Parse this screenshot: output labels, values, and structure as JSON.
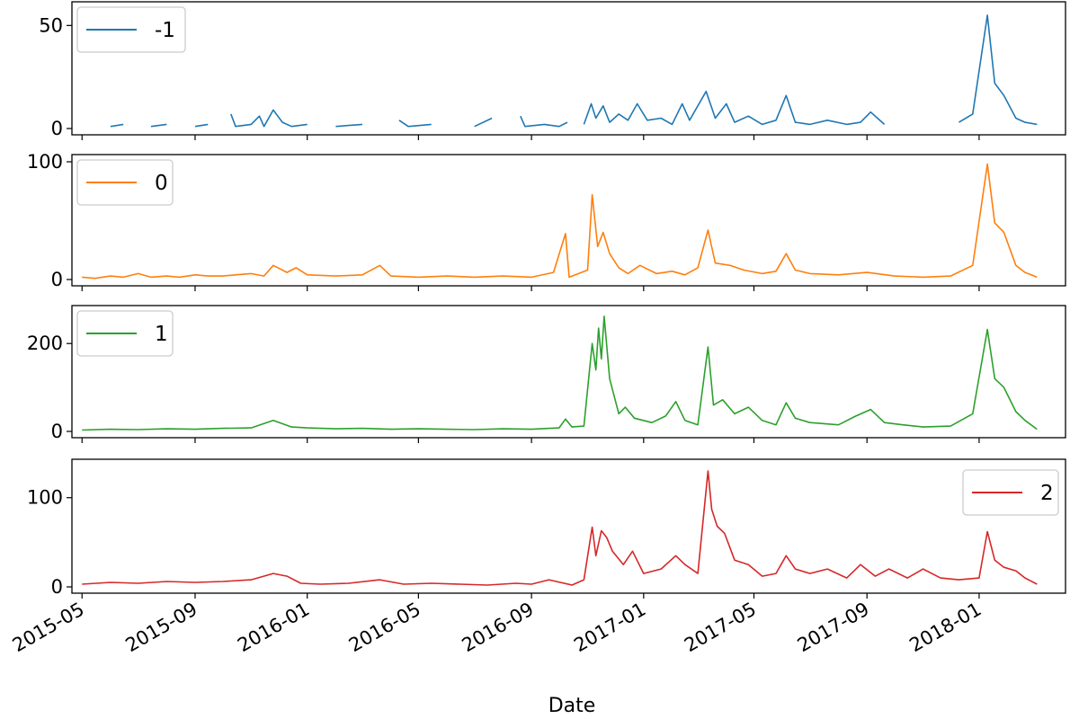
{
  "chart_data": {
    "type": "line",
    "subplots": true,
    "xlabel": "Date",
    "x_tick_labels": [
      "2015-05",
      "2015-09",
      "2016-01",
      "2016-05",
      "2016-09",
      "2017-01",
      "2017-05",
      "2017-09",
      "2018-01"
    ],
    "x_tick_dates": [
      "2015-05-01",
      "2015-09-01",
      "2016-01-01",
      "2016-05-01",
      "2016-09-01",
      "2017-01-01",
      "2017-05-01",
      "2017-09-01",
      "2018-01-01"
    ],
    "xlim": [
      "2015-04-20",
      "2018-04-05"
    ],
    "grid": false,
    "series": [
      {
        "name": "-1",
        "color": "#1f77b4",
        "ylim": [
          0,
          58
        ],
        "yticks": [
          0,
          50
        ],
        "legend_loc": "upper left",
        "points": [
          [
            "2015-05-01",
            null
          ],
          [
            "2015-05-10",
            1
          ],
          [
            "2015-05-20",
            null
          ],
          [
            "2015-06-01",
            1
          ],
          [
            "2015-06-15",
            2
          ],
          [
            "2015-07-01",
            null
          ],
          [
            "2015-07-15",
            1
          ],
          [
            "2015-08-01",
            2
          ],
          [
            "2015-08-20",
            null
          ],
          [
            "2015-09-01",
            1
          ],
          [
            "2015-09-15",
            2
          ],
          [
            "2015-10-01",
            null
          ],
          [
            "2015-10-10",
            7
          ],
          [
            "2015-10-15",
            1
          ],
          [
            "2015-11-01",
            2
          ],
          [
            "2015-11-10",
            6
          ],
          [
            "2015-11-15",
            1
          ],
          [
            "2015-11-25",
            9
          ],
          [
            "2015-12-05",
            3
          ],
          [
            "2015-12-15",
            1
          ],
          [
            "2016-01-01",
            2
          ],
          [
            "2016-01-20",
            null
          ],
          [
            "2016-02-01",
            1
          ],
          [
            "2016-03-01",
            2
          ],
          [
            "2016-04-01",
            null
          ],
          [
            "2016-04-10",
            4
          ],
          [
            "2016-04-20",
            1
          ],
          [
            "2016-05-15",
            2
          ],
          [
            "2016-06-01",
            null
          ],
          [
            "2016-07-01",
            1
          ],
          [
            "2016-07-20",
            5
          ],
          [
            "2016-08-01",
            null
          ],
          [
            "2016-08-20",
            6
          ],
          [
            "2016-08-25",
            1
          ],
          [
            "2016-09-15",
            2
          ],
          [
            "2016-10-01",
            1
          ],
          [
            "2016-10-10",
            3
          ],
          [
            "2016-10-15",
            null
          ],
          [
            "2016-10-28",
            2
          ],
          [
            "2016-11-05",
            12
          ],
          [
            "2016-11-10",
            5
          ],
          [
            "2016-11-18",
            11
          ],
          [
            "2016-11-25",
            3
          ],
          [
            "2016-12-05",
            7
          ],
          [
            "2016-12-15",
            4
          ],
          [
            "2016-12-25",
            12
          ],
          [
            "2017-01-05",
            4
          ],
          [
            "2017-01-20",
            5
          ],
          [
            "2017-02-01",
            2
          ],
          [
            "2017-02-12",
            12
          ],
          [
            "2017-02-20",
            4
          ],
          [
            "2017-03-10",
            18
          ],
          [
            "2017-03-20",
            5
          ],
          [
            "2017-04-01",
            12
          ],
          [
            "2017-04-10",
            3
          ],
          [
            "2017-04-25",
            6
          ],
          [
            "2017-05-10",
            2
          ],
          [
            "2017-05-25",
            4
          ],
          [
            "2017-06-05",
            16
          ],
          [
            "2017-06-15",
            3
          ],
          [
            "2017-07-01",
            2
          ],
          [
            "2017-07-20",
            4
          ],
          [
            "2017-08-10",
            2
          ],
          [
            "2017-08-25",
            3
          ],
          [
            "2017-09-05",
            8
          ],
          [
            "2017-09-20",
            2
          ],
          [
            "2017-10-01",
            null
          ],
          [
            "2017-10-10",
            1
          ],
          [
            "2017-10-25",
            null
          ],
          [
            "2017-11-01",
            1
          ],
          [
            "2017-11-20",
            null
          ],
          [
            "2017-12-01",
            null
          ],
          [
            "2017-12-10",
            3
          ],
          [
            "2017-12-25",
            7
          ],
          [
            "2018-01-10",
            55
          ],
          [
            "2018-01-18",
            22
          ],
          [
            "2018-01-28",
            16
          ],
          [
            "2018-02-10",
            5
          ],
          [
            "2018-02-20",
            3
          ],
          [
            "2018-03-05",
            2
          ]
        ]
      },
      {
        "name": "0",
        "color": "#ff7f0e",
        "ylim": [
          0,
          100
        ],
        "yticks": [
          0,
          100
        ],
        "legend_loc": "upper left",
        "points": [
          [
            "2015-05-01",
            2
          ],
          [
            "2015-05-15",
            1
          ],
          [
            "2015-06-01",
            3
          ],
          [
            "2015-06-15",
            2
          ],
          [
            "2015-07-01",
            5
          ],
          [
            "2015-07-15",
            2
          ],
          [
            "2015-08-01",
            3
          ],
          [
            "2015-08-15",
            2
          ],
          [
            "2015-09-01",
            4
          ],
          [
            "2015-09-15",
            3
          ],
          [
            "2015-10-01",
            3
          ],
          [
            "2015-10-15",
            4
          ],
          [
            "2015-11-01",
            5
          ],
          [
            "2015-11-15",
            3
          ],
          [
            "2015-11-25",
            12
          ],
          [
            "2015-12-10",
            6
          ],
          [
            "2015-12-20",
            10
          ],
          [
            "2016-01-01",
            4
          ],
          [
            "2016-02-01",
            3
          ],
          [
            "2016-03-01",
            4
          ],
          [
            "2016-03-20",
            12
          ],
          [
            "2016-04-01",
            3
          ],
          [
            "2016-05-01",
            2
          ],
          [
            "2016-06-01",
            3
          ],
          [
            "2016-07-01",
            2
          ],
          [
            "2016-08-01",
            3
          ],
          [
            "2016-09-01",
            2
          ],
          [
            "2016-09-25",
            6
          ],
          [
            "2016-10-08",
            39
          ],
          [
            "2016-10-12",
            2
          ],
          [
            "2016-11-01",
            8
          ],
          [
            "2016-11-06",
            72
          ],
          [
            "2016-11-12",
            28
          ],
          [
            "2016-11-18",
            40
          ],
          [
            "2016-11-25",
            22
          ],
          [
            "2016-12-05",
            10
          ],
          [
            "2016-12-15",
            5
          ],
          [
            "2016-12-28",
            12
          ],
          [
            "2017-01-15",
            5
          ],
          [
            "2017-02-01",
            7
          ],
          [
            "2017-02-15",
            4
          ],
          [
            "2017-03-01",
            10
          ],
          [
            "2017-03-12",
            42
          ],
          [
            "2017-03-20",
            14
          ],
          [
            "2017-04-05",
            12
          ],
          [
            "2017-04-20",
            8
          ],
          [
            "2017-05-10",
            5
          ],
          [
            "2017-05-25",
            7
          ],
          [
            "2017-06-05",
            22
          ],
          [
            "2017-06-15",
            8
          ],
          [
            "2017-07-01",
            5
          ],
          [
            "2017-08-01",
            4
          ],
          [
            "2017-09-01",
            6
          ],
          [
            "2017-10-01",
            3
          ],
          [
            "2017-11-01",
            2
          ],
          [
            "2017-12-01",
            3
          ],
          [
            "2017-12-25",
            12
          ],
          [
            "2018-01-10",
            98
          ],
          [
            "2018-01-18",
            48
          ],
          [
            "2018-01-28",
            40
          ],
          [
            "2018-02-10",
            12
          ],
          [
            "2018-02-20",
            6
          ],
          [
            "2018-03-05",
            2
          ]
        ]
      },
      {
        "name": "1",
        "color": "#2ca02c",
        "ylim": [
          0,
          270
        ],
        "yticks": [
          0,
          200
        ],
        "legend_loc": "upper left",
        "points": [
          [
            "2015-05-01",
            3
          ],
          [
            "2015-06-01",
            5
          ],
          [
            "2015-07-01",
            4
          ],
          [
            "2015-08-01",
            6
          ],
          [
            "2015-09-01",
            5
          ],
          [
            "2015-10-01",
            7
          ],
          [
            "2015-11-01",
            8
          ],
          [
            "2015-11-25",
            25
          ],
          [
            "2015-12-15",
            10
          ],
          [
            "2016-01-01",
            8
          ],
          [
            "2016-02-01",
            6
          ],
          [
            "2016-03-01",
            7
          ],
          [
            "2016-04-01",
            5
          ],
          [
            "2016-05-01",
            6
          ],
          [
            "2016-06-01",
            5
          ],
          [
            "2016-07-01",
            4
          ],
          [
            "2016-08-01",
            6
          ],
          [
            "2016-09-01",
            5
          ],
          [
            "2016-10-01",
            8
          ],
          [
            "2016-10-08",
            28
          ],
          [
            "2016-10-15",
            10
          ],
          [
            "2016-10-28",
            12
          ],
          [
            "2016-11-06",
            200
          ],
          [
            "2016-11-10",
            140
          ],
          [
            "2016-11-13",
            235
          ],
          [
            "2016-11-16",
            165
          ],
          [
            "2016-11-19",
            262
          ],
          [
            "2016-11-25",
            120
          ],
          [
            "2016-12-05",
            40
          ],
          [
            "2016-12-12",
            55
          ],
          [
            "2016-12-22",
            30
          ],
          [
            "2017-01-10",
            20
          ],
          [
            "2017-01-25",
            35
          ],
          [
            "2017-02-05",
            68
          ],
          [
            "2017-02-15",
            25
          ],
          [
            "2017-03-01",
            15
          ],
          [
            "2017-03-12",
            192
          ],
          [
            "2017-03-18",
            60
          ],
          [
            "2017-03-28",
            72
          ],
          [
            "2017-04-10",
            40
          ],
          [
            "2017-04-25",
            55
          ],
          [
            "2017-05-10",
            25
          ],
          [
            "2017-05-25",
            15
          ],
          [
            "2017-06-05",
            65
          ],
          [
            "2017-06-15",
            30
          ],
          [
            "2017-07-01",
            20
          ],
          [
            "2017-08-01",
            15
          ],
          [
            "2017-08-20",
            35
          ],
          [
            "2017-09-05",
            50
          ],
          [
            "2017-09-20",
            20
          ],
          [
            "2017-10-10",
            15
          ],
          [
            "2017-11-01",
            10
          ],
          [
            "2017-12-01",
            12
          ],
          [
            "2017-12-25",
            40
          ],
          [
            "2018-01-10",
            232
          ],
          [
            "2018-01-18",
            120
          ],
          [
            "2018-01-28",
            100
          ],
          [
            "2018-02-10",
            45
          ],
          [
            "2018-02-20",
            25
          ],
          [
            "2018-03-05",
            5
          ]
        ]
      },
      {
        "name": "2",
        "color": "#d62728",
        "ylim": [
          0,
          135
        ],
        "yticks": [
          0,
          100
        ],
        "legend_loc": "upper right",
        "points": [
          [
            "2015-05-01",
            3
          ],
          [
            "2015-06-01",
            5
          ],
          [
            "2015-07-01",
            4
          ],
          [
            "2015-08-01",
            6
          ],
          [
            "2015-09-01",
            5
          ],
          [
            "2015-10-01",
            6
          ],
          [
            "2015-11-01",
            8
          ],
          [
            "2015-11-25",
            15
          ],
          [
            "2015-12-10",
            12
          ],
          [
            "2015-12-25",
            4
          ],
          [
            "2016-01-15",
            3
          ],
          [
            "2016-02-15",
            4
          ],
          [
            "2016-03-20",
            8
          ],
          [
            "2016-04-15",
            3
          ],
          [
            "2016-05-15",
            4
          ],
          [
            "2016-06-15",
            3
          ],
          [
            "2016-07-15",
            2
          ],
          [
            "2016-08-15",
            4
          ],
          [
            "2016-09-01",
            3
          ],
          [
            "2016-09-20",
            8
          ],
          [
            "2016-10-15",
            2
          ],
          [
            "2016-10-28",
            8
          ],
          [
            "2016-11-06",
            67
          ],
          [
            "2016-11-10",
            35
          ],
          [
            "2016-11-16",
            63
          ],
          [
            "2016-11-22",
            55
          ],
          [
            "2016-11-28",
            40
          ],
          [
            "2016-12-10",
            25
          ],
          [
            "2016-12-20",
            40
          ],
          [
            "2017-01-01",
            15
          ],
          [
            "2017-01-20",
            20
          ],
          [
            "2017-02-05",
            35
          ],
          [
            "2017-02-15",
            25
          ],
          [
            "2017-03-01",
            15
          ],
          [
            "2017-03-12",
            130
          ],
          [
            "2017-03-16",
            87
          ],
          [
            "2017-03-22",
            68
          ],
          [
            "2017-03-30",
            60
          ],
          [
            "2017-04-10",
            30
          ],
          [
            "2017-04-25",
            25
          ],
          [
            "2017-05-10",
            12
          ],
          [
            "2017-05-25",
            15
          ],
          [
            "2017-06-05",
            35
          ],
          [
            "2017-06-15",
            20
          ],
          [
            "2017-07-01",
            15
          ],
          [
            "2017-07-20",
            20
          ],
          [
            "2017-08-10",
            10
          ],
          [
            "2017-08-25",
            25
          ],
          [
            "2017-09-10",
            12
          ],
          [
            "2017-09-25",
            20
          ],
          [
            "2017-10-15",
            10
          ],
          [
            "2017-11-01",
            20
          ],
          [
            "2017-11-20",
            10
          ],
          [
            "2017-12-10",
            8
          ],
          [
            "2018-01-01",
            10
          ],
          [
            "2018-01-10",
            62
          ],
          [
            "2018-01-18",
            30
          ],
          [
            "2018-01-28",
            22
          ],
          [
            "2018-02-10",
            18
          ],
          [
            "2018-02-20",
            10
          ],
          [
            "2018-03-05",
            3
          ]
        ]
      }
    ]
  }
}
